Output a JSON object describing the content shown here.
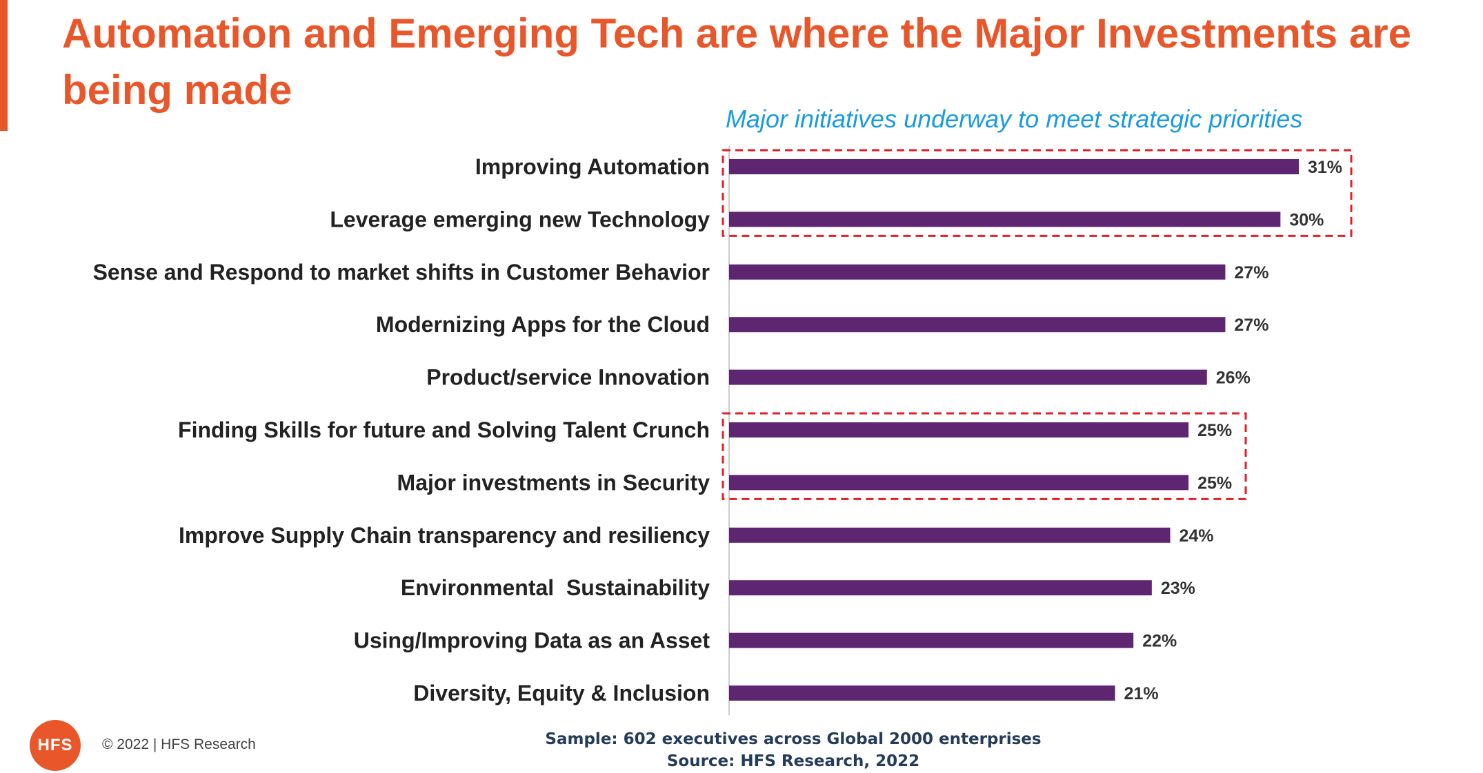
{
  "colors": {
    "title": "#E8562A",
    "subtitle": "#1A9BE0",
    "bar": "#5E2570",
    "label": "#222222",
    "value": "#333333",
    "highlight_box": "#E41E26",
    "axis": "#CCCCCC",
    "footer_note": "#243B5A",
    "accent": "#E8562A"
  },
  "slide": {
    "title": "Automation and Emerging Tech are where the Major Investments are being made",
    "subtitle": "Major initiatives underway to meet strategic priorities"
  },
  "footer": {
    "logo_text": "HFS",
    "copyright": "© 2022 | HFS Research",
    "sample": "Sample: 602 executives across Global 2000 enterprises",
    "source": "Source: HFS Research, 2022"
  },
  "chart_data": {
    "type": "bar",
    "orientation": "horizontal",
    "title": "Major initiatives underway to meet strategic priorities",
    "categories": [
      "Improving Automation",
      "Leverage emerging new Technology",
      "Sense and Respond to market shifts in Customer Behavior",
      "Modernizing Apps for the Cloud",
      "Product/service Innovation",
      "Finding Skills for future and Solving Talent Crunch",
      "Major investments in Security",
      "Improve Supply Chain transparency and resiliency",
      "Environmental  Sustainability",
      "Using/Improving Data as an Asset",
      "Diversity, Equity & Inclusion"
    ],
    "values": [
      0.31,
      0.3,
      0.27,
      0.27,
      0.26,
      0.25,
      0.25,
      0.24,
      0.23,
      0.22,
      0.21
    ],
    "value_labels": [
      "31%",
      "30%",
      "27%",
      "27%",
      "26%",
      "25%",
      "25%",
      "24%",
      "23%",
      "22%",
      "21%"
    ],
    "highlight_groups": [
      [
        0,
        1
      ],
      [
        5,
        6
      ]
    ],
    "grid": false,
    "legend": "none"
  }
}
